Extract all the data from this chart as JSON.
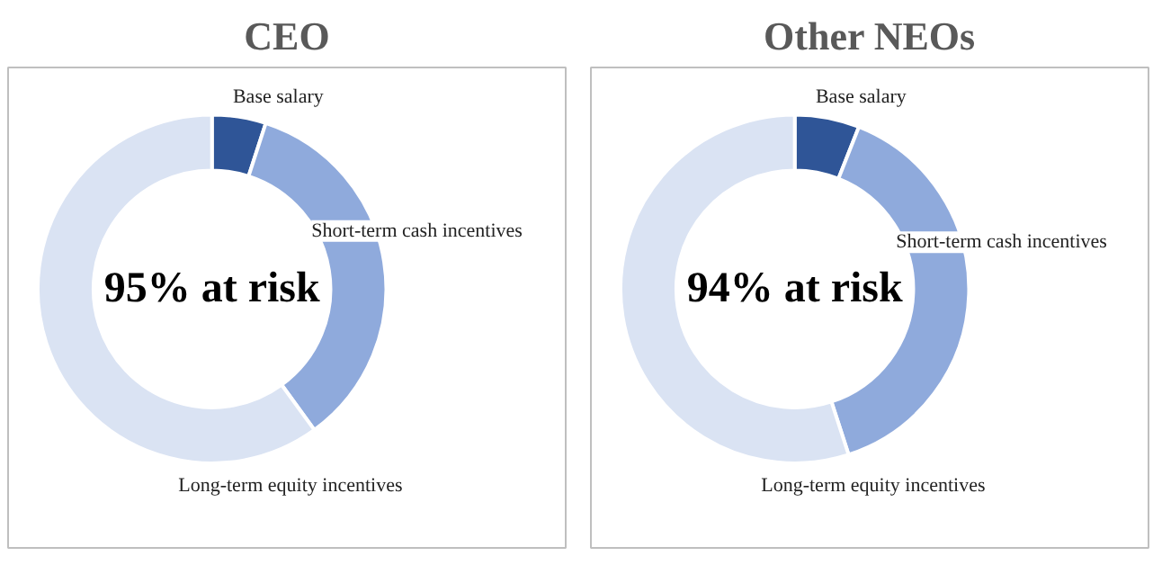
{
  "chart_data": [
    {
      "type": "donut",
      "title": "CEO",
      "categories": [
        "Base salary",
        "Short-term cash incentives",
        "Long-term equity incentives"
      ],
      "values": [
        5,
        35,
        60
      ],
      "colors": [
        "#2f5597",
        "#8faadc",
        "#dae3f3"
      ],
      "annotations": [
        "95% at risk"
      ],
      "legend": false
    },
    {
      "type": "donut",
      "title": "Other NEOs",
      "categories": [
        "Base salary",
        "Short-term cash incentives",
        "Long-term equity incentives"
      ],
      "values": [
        6,
        39,
        55
      ],
      "colors": [
        "#2f5597",
        "#8faadc",
        "#dae3f3"
      ],
      "annotations": [
        "94% at risk"
      ],
      "legend": false
    }
  ]
}
